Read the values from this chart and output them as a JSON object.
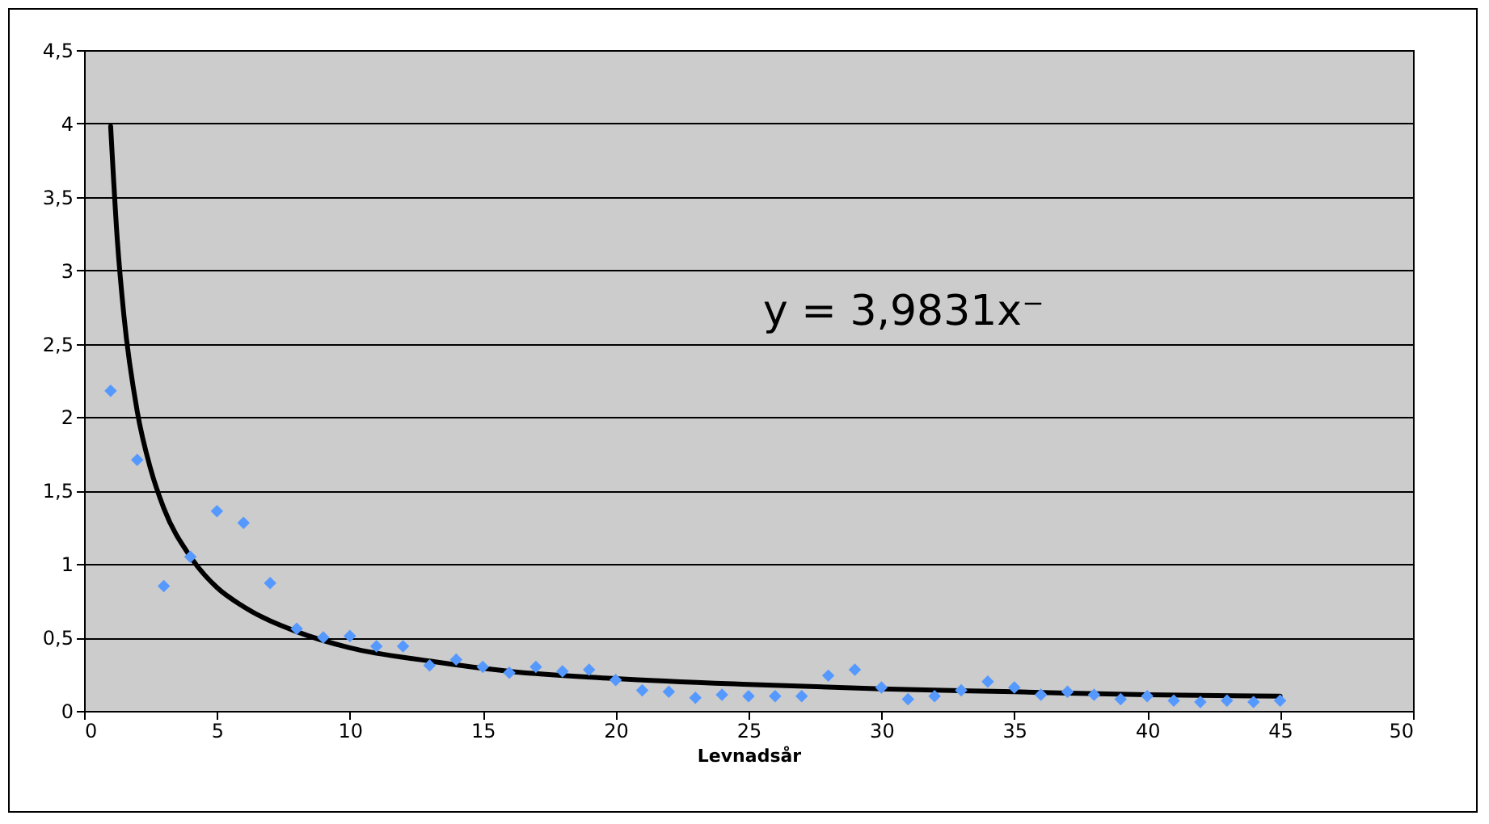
{
  "chart_data": {
    "type": "scatter",
    "xlabel": "Levnadsår",
    "annotations": [
      "y = 3,9831x⁻"
    ],
    "xlim": [
      0,
      50
    ],
    "xticks": [
      0,
      5,
      10,
      15,
      20,
      25,
      30,
      35,
      40,
      45,
      50
    ],
    "ylim": [
      0,
      4.5
    ],
    "yticks": [
      0,
      {
        "value": 0.5,
        "label": "0,5"
      },
      1,
      {
        "value": 1.5,
        "label": "1,5"
      },
      2,
      {
        "value": 2.5,
        "label": "2,5"
      },
      3,
      {
        "value": 3.5,
        "label": "3,5"
      },
      4,
      {
        "value": 4.5,
        "label": "4,5"
      }
    ],
    "grid": "y",
    "marker": "diamond",
    "series": [
      {
        "color": "#5599ff",
        "x": [
          1,
          2,
          3,
          4,
          5,
          6,
          7,
          8,
          9,
          10,
          11,
          12,
          13,
          14,
          15,
          16,
          17,
          18,
          19,
          20,
          21,
          22,
          23,
          24,
          25,
          26,
          27,
          28,
          29,
          30,
          31,
          32,
          33,
          34,
          35,
          36,
          37,
          38,
          39,
          40,
          41,
          42,
          43,
          44,
          45
        ],
        "values": [
          2.18,
          1.71,
          0.85,
          1.05,
          1.36,
          1.28,
          0.87,
          0.56,
          0.5,
          0.51,
          0.44,
          0.44,
          0.31,
          0.35,
          0.3,
          0.26,
          0.3,
          0.27,
          0.28,
          0.21,
          0.14,
          0.13,
          0.09,
          0.11,
          0.1,
          0.1,
          0.1,
          0.24,
          0.28,
          0.16,
          0.08,
          0.1,
          0.14,
          0.2,
          0.16,
          0.11,
          0.13,
          0.11,
          0.08,
          0.1,
          0.07,
          0.06,
          0.07,
          0.06,
          0.07
        ]
      },
      {
        "type": "line",
        "color": "#000000",
        "marker": "none",
        "line_style": "solid",
        "x": [
          1,
          1.25,
          1.5,
          2,
          2.5,
          3,
          4,
          5,
          6,
          8,
          10,
          13,
          16,
          20,
          25,
          30,
          35,
          40,
          45
        ],
        "values": [
          3.98,
          3.21,
          2.69,
          2.04,
          1.65,
          1.38,
          1.05,
          0.84,
          0.71,
          0.54,
          0.43,
          0.34,
          0.27,
          0.22,
          0.18,
          0.15,
          0.13,
          0.11,
          0.1
        ]
      }
    ]
  }
}
